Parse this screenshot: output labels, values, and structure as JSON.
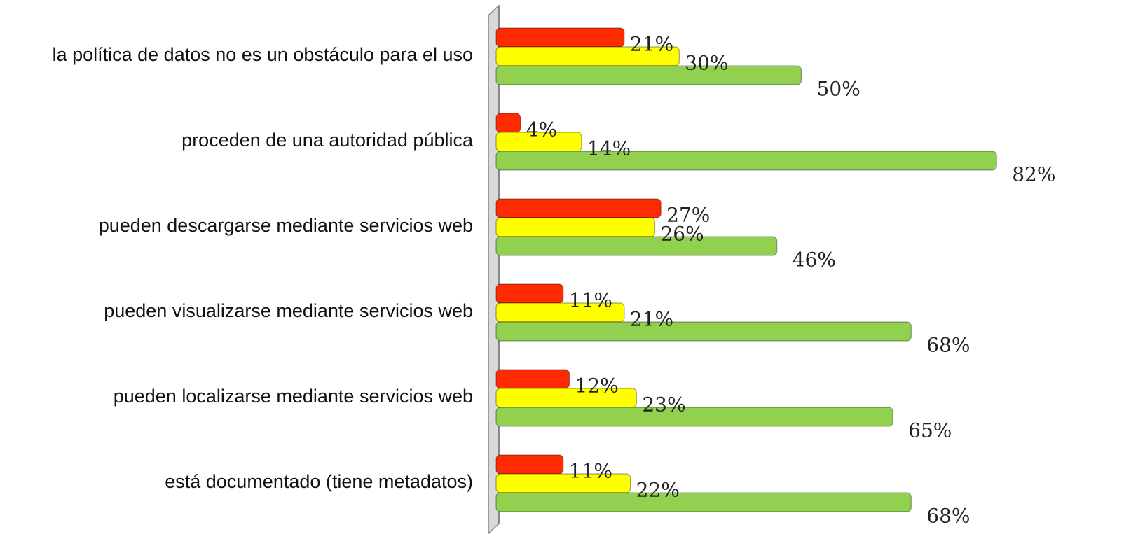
{
  "chart_data": {
    "type": "bar",
    "orientation": "horizontal",
    "categories": [
      "la política de datos no es un obstáculo para el uso",
      "proceden de una autoridad pública",
      "pueden descargarse mediante servicios web",
      "pueden visualizarse mediante servicios web",
      "pueden localizarse mediante servicios web",
      "está documentado (tiene metadatos)"
    ],
    "series": [
      {
        "color": "#ff2a00",
        "values": [
          21,
          4,
          27,
          11,
          12,
          11
        ],
        "value_labels": [
          "21%",
          "4%",
          "27%",
          "11%",
          "12%",
          "11%"
        ]
      },
      {
        "color": "#ffff00",
        "values": [
          30,
          14,
          26,
          21,
          23,
          22
        ],
        "value_labels": [
          "30%",
          "14%",
          "26%",
          "21%",
          "23%",
          "22%"
        ]
      },
      {
        "color": "#92d050",
        "values": [
          50,
          82,
          46,
          68,
          65,
          68
        ],
        "value_labels": [
          "50%",
          "82%",
          "46%",
          "68%",
          "65%",
          "68%"
        ]
      }
    ],
    "xlim": [
      0,
      100
    ],
    "grid": false
  }
}
